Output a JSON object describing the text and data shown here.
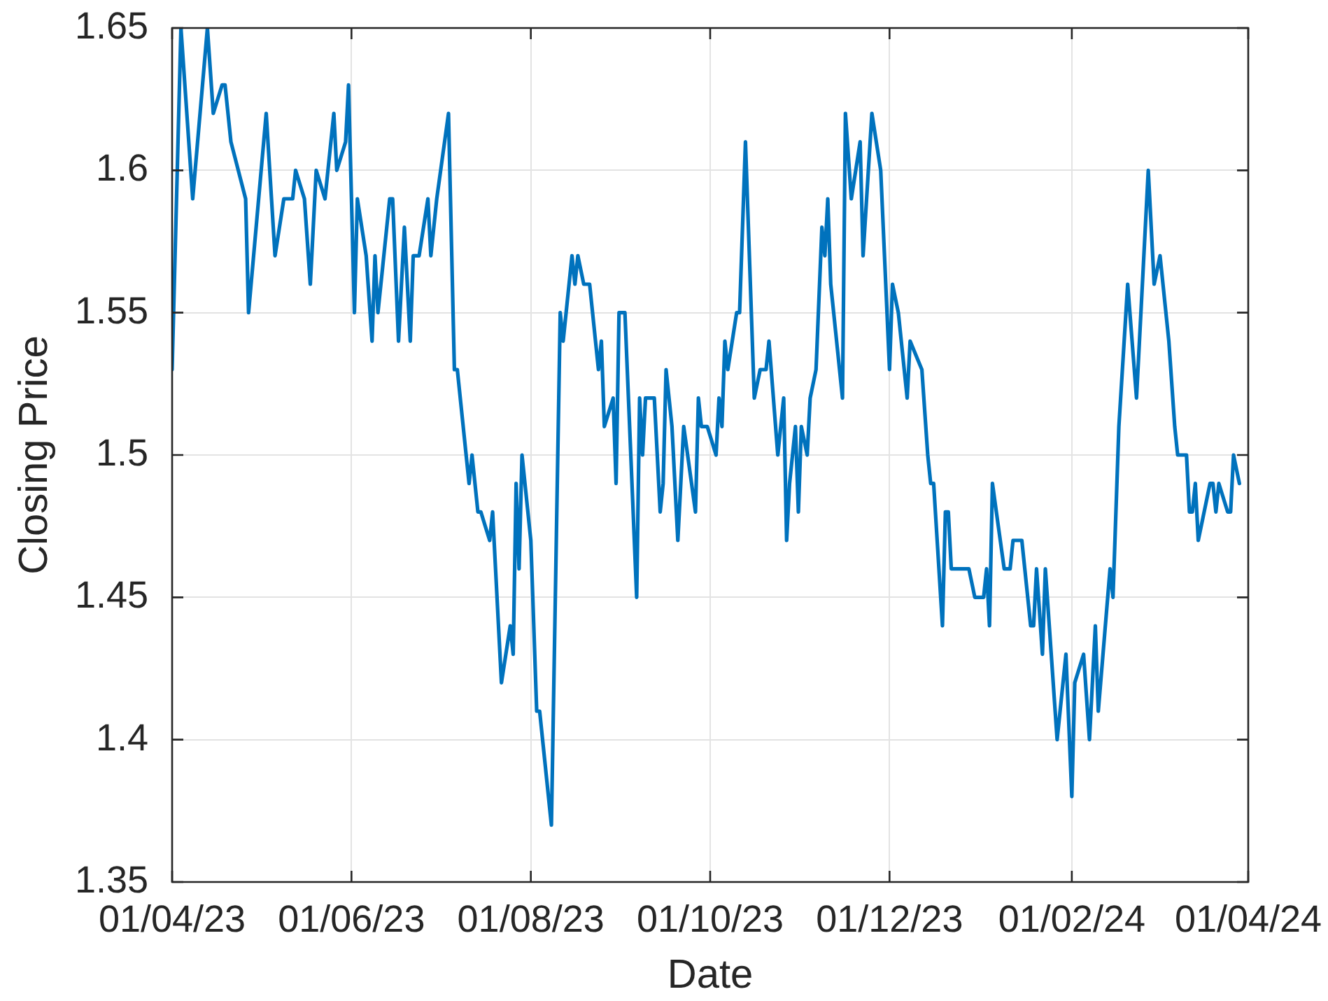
{
  "chart_data": {
    "type": "line",
    "xlabel": "Date",
    "ylabel": "Closing Price",
    "x": [
      "2023-04-01",
      "2023-04-04",
      "2023-04-08",
      "2023-04-13",
      "2023-04-15",
      "2023-04-18",
      "2023-04-19",
      "2023-04-21",
      "2023-04-26",
      "2023-04-27",
      "2023-05-03",
      "2023-05-06",
      "2023-05-09",
      "2023-05-12",
      "2023-05-13",
      "2023-05-16",
      "2023-05-18",
      "2023-05-20",
      "2023-05-23",
      "2023-05-24",
      "2023-05-26",
      "2023-05-27",
      "2023-05-30",
      "2023-05-31",
      "2023-06-02",
      "2023-06-03",
      "2023-06-06",
      "2023-06-08",
      "2023-06-09",
      "2023-06-10",
      "2023-06-14",
      "2023-06-15",
      "2023-06-17",
      "2023-06-19",
      "2023-06-21",
      "2023-06-22",
      "2023-06-24",
      "2023-06-27",
      "2023-06-28",
      "2023-06-30",
      "2023-07-04",
      "2023-07-06",
      "2023-07-07",
      "2023-07-11",
      "2023-07-12",
      "2023-07-13",
      "2023-07-14",
      "2023-07-15",
      "2023-07-18",
      "2023-07-19",
      "2023-07-22",
      "2023-07-25",
      "2023-07-26",
      "2023-07-27",
      "2023-07-28",
      "2023-07-29",
      "2023-08-01",
      "2023-08-03",
      "2023-08-04",
      "2023-08-08",
      "2023-08-11",
      "2023-08-12",
      "2023-08-15",
      "2023-08-16",
      "2023-08-17",
      "2023-08-19",
      "2023-08-21",
      "2023-08-24",
      "2023-08-25",
      "2023-08-26",
      "2023-08-29",
      "2023-08-30",
      "2023-08-31",
      "2023-09-02",
      "2023-09-06",
      "2023-09-07",
      "2023-09-08",
      "2023-09-09",
      "2023-09-12",
      "2023-09-14",
      "2023-09-15",
      "2023-09-16",
      "2023-09-18",
      "2023-09-20",
      "2023-09-22",
      "2023-09-26",
      "2023-09-27",
      "2023-09-28",
      "2023-09-30",
      "2023-10-03",
      "2023-10-04",
      "2023-10-05",
      "2023-10-06",
      "2023-10-07",
      "2023-10-10",
      "2023-10-11",
      "2023-10-13",
      "2023-10-16",
      "2023-10-18",
      "2023-10-20",
      "2023-10-21",
      "2023-10-24",
      "2023-10-26",
      "2023-10-27",
      "2023-10-28",
      "2023-10-30",
      "2023-10-31",
      "2023-11-01",
      "2023-11-03",
      "2023-11-04",
      "2023-11-06",
      "2023-11-08",
      "2023-11-09",
      "2023-11-10",
      "2023-11-11",
      "2023-11-15",
      "2023-11-16",
      "2023-11-18",
      "2023-11-21",
      "2023-11-22",
      "2023-11-25",
      "2023-11-28",
      "2023-12-01",
      "2023-12-02",
      "2023-12-04",
      "2023-12-07",
      "2023-12-08",
      "2023-12-12",
      "2023-12-14",
      "2023-12-15",
      "2023-12-16",
      "2023-12-19",
      "2023-12-20",
      "2023-12-21",
      "2023-12-22",
      "2023-12-28",
      "2023-12-30",
      "2024-01-02",
      "2024-01-03",
      "2024-01-04",
      "2024-01-05",
      "2024-01-09",
      "2024-01-11",
      "2024-01-12",
      "2024-01-15",
      "2024-01-17",
      "2024-01-18",
      "2024-01-19",
      "2024-01-20",
      "2024-01-22",
      "2024-01-23",
      "2024-01-27",
      "2024-01-30",
      "2024-02-01",
      "2024-02-02",
      "2024-02-05",
      "2024-02-07",
      "2024-02-09",
      "2024-02-10",
      "2024-02-14",
      "2024-02-15",
      "2024-02-17",
      "2024-02-20",
      "2024-02-23",
      "2024-02-27",
      "2024-02-29",
      "2024-03-02",
      "2024-03-05",
      "2024-03-07",
      "2024-03-08",
      "2024-03-11",
      "2024-03-12",
      "2024-03-13",
      "2024-03-14",
      "2024-03-15",
      "2024-03-19",
      "2024-03-20",
      "2024-03-21",
      "2024-03-22",
      "2024-03-25",
      "2024-03-26",
      "2024-03-27",
      "2024-03-29"
    ],
    "series": [
      {
        "color": "#0072bd",
        "values": [
          1.53,
          1.65,
          1.59,
          1.65,
          1.62,
          1.63,
          1.63,
          1.61,
          1.59,
          1.55,
          1.62,
          1.57,
          1.59,
          1.59,
          1.6,
          1.59,
          1.56,
          1.6,
          1.59,
          1.6,
          1.62,
          1.6,
          1.61,
          1.63,
          1.55,
          1.59,
          1.57,
          1.54,
          1.57,
          1.55,
          1.59,
          1.59,
          1.54,
          1.58,
          1.54,
          1.57,
          1.57,
          1.59,
          1.57,
          1.59,
          1.62,
          1.53,
          1.53,
          1.49,
          1.5,
          1.49,
          1.48,
          1.48,
          1.47,
          1.48,
          1.42,
          1.44,
          1.43,
          1.49,
          1.46,
          1.5,
          1.47,
          1.41,
          1.41,
          1.37,
          1.55,
          1.54,
          1.57,
          1.56,
          1.57,
          1.56,
          1.56,
          1.53,
          1.54,
          1.51,
          1.52,
          1.49,
          1.55,
          1.55,
          1.45,
          1.52,
          1.5,
          1.52,
          1.52,
          1.48,
          1.49,
          1.53,
          1.51,
          1.47,
          1.51,
          1.48,
          1.52,
          1.51,
          1.51,
          1.5,
          1.52,
          1.51,
          1.54,
          1.53,
          1.55,
          1.55,
          1.61,
          1.52,
          1.53,
          1.53,
          1.54,
          1.5,
          1.52,
          1.47,
          1.49,
          1.51,
          1.48,
          1.51,
          1.5,
          1.52,
          1.53,
          1.58,
          1.57,
          1.59,
          1.56,
          1.52,
          1.62,
          1.59,
          1.61,
          1.57,
          1.62,
          1.6,
          1.53,
          1.56,
          1.55,
          1.52,
          1.54,
          1.53,
          1.5,
          1.49,
          1.49,
          1.44,
          1.48,
          1.48,
          1.46,
          1.46,
          1.45,
          1.45,
          1.46,
          1.44,
          1.49,
          1.46,
          1.46,
          1.47,
          1.47,
          1.45,
          1.44,
          1.44,
          1.46,
          1.43,
          1.46,
          1.4,
          1.43,
          1.38,
          1.42,
          1.43,
          1.4,
          1.44,
          1.41,
          1.46,
          1.45,
          1.51,
          1.56,
          1.52,
          1.6,
          1.56,
          1.57,
          1.54,
          1.51,
          1.5,
          1.5,
          1.48,
          1.48,
          1.49,
          1.47,
          1.49,
          1.49,
          1.48,
          1.49,
          1.48,
          1.48,
          1.5,
          1.49
        ]
      }
    ],
    "xlim": [
      "2023-04-01",
      "2024-04-01"
    ],
    "xticks": [
      {
        "value": "2023-04-01",
        "label": "01/04/23"
      },
      {
        "value": "2023-06-01",
        "label": "01/06/23"
      },
      {
        "value": "2023-08-01",
        "label": "01/08/23"
      },
      {
        "value": "2023-10-01",
        "label": "01/10/23"
      },
      {
        "value": "2023-12-01",
        "label": "01/12/23"
      },
      {
        "value": "2024-02-01",
        "label": "01/02/24"
      },
      {
        "value": "2024-04-01",
        "label": "01/04/24"
      }
    ],
    "ylim": [
      1.35,
      1.65
    ],
    "yticks": [
      1.35,
      1.4,
      1.45,
      1.5,
      1.55,
      1.6,
      1.65
    ],
    "grid": true
  }
}
